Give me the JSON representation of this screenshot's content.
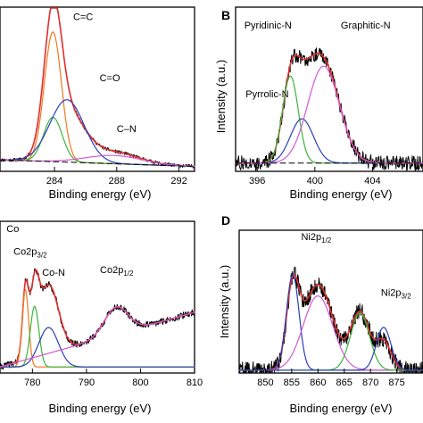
{
  "chart_data": [
    {
      "id": "A",
      "type": "line",
      "panel_label": "",
      "title": "",
      "xlabel": "Binding energy (eV)",
      "ylabel": "",
      "xlim": [
        280.5,
        293
      ],
      "ylim": [
        0,
        1
      ],
      "xticks": [
        284,
        288,
        292
      ],
      "xtick_labels": [
        "284",
        "288",
        "292"
      ],
      "annotations": [
        {
          "text": "C=C",
          "sub": "",
          "x": 285.2,
          "y": 0.92
        },
        {
          "text": "C=O",
          "sub": "",
          "x": 286.9,
          "y": 0.55
        },
        {
          "text": "C–N",
          "sub": "",
          "x": 288.0,
          "y": 0.24
        }
      ],
      "series": [
        {
          "color": "#000000",
          "role": "data",
          "width": 1.0,
          "peaks": [
            {
              "c": 283.9,
              "a": 0.77,
              "w": 0.55
            },
            {
              "c": 284.8,
              "a": 0.3,
              "w": 1.1
            },
            {
              "c": 287.8,
              "a": 0.07,
              "w": 1.6
            }
          ],
          "baseline": [
            0.07,
            0.03
          ],
          "noise": 0.01,
          "seed": 11,
          "step": 0.03
        },
        {
          "color": "#e03030",
          "role": "fit",
          "width": 1.6,
          "peaks": [
            {
              "c": 283.9,
              "a": 0.77,
              "w": 0.55
            },
            {
              "c": 284.8,
              "a": 0.3,
              "w": 1.1
            },
            {
              "c": 287.8,
              "a": 0.07,
              "w": 1.6
            }
          ],
          "baseline": [
            0.07,
            0.03
          ]
        },
        {
          "color": "#f07820",
          "role": "component",
          "width": 1.2,
          "peaks": [
            {
              "c": 283.9,
              "a": 0.79,
              "w": 0.55
            }
          ],
          "baseline": [
            0.07,
            0.03
          ]
        },
        {
          "color": "#3cb43c",
          "role": "component",
          "width": 1.2,
          "peaks": [
            {
              "c": 283.9,
              "a": 0.27,
              "w": 0.6
            }
          ],
          "baseline": [
            0.07,
            0.03
          ]
        },
        {
          "color": "#2b3fb8",
          "role": "component",
          "width": 1.2,
          "peaks": [
            {
              "c": 284.8,
              "a": 0.38,
              "w": 1.1
            }
          ],
          "baseline": [
            0.07,
            0.03
          ]
        },
        {
          "color": "#d05ad0",
          "role": "component",
          "width": 1.2,
          "peaks": [
            {
              "c": 287.8,
              "a": 0.05,
              "w": 1.8
            }
          ],
          "baseline": [
            0.07,
            0.03
          ]
        },
        {
          "color": "#000000",
          "role": "baseline",
          "width": 1.0,
          "dash": "6,4",
          "peaks": [],
          "baseline": [
            0.07,
            0.03
          ]
        }
      ]
    },
    {
      "id": "B",
      "type": "line",
      "panel_label": "B",
      "title": "",
      "xlabel": "Binding energy (eV)",
      "ylabel": "Intensity (a.u.)",
      "xlim": [
        394.5,
        407.5
      ],
      "ylim": [
        0,
        1
      ],
      "xticks": [
        396,
        400,
        404
      ],
      "xtick_labels": [
        "396",
        "400",
        "404"
      ],
      "annotations": [
        {
          "text": "Pyridinic-N",
          "sub": "",
          "x": 395.1,
          "y": 0.87
        },
        {
          "text": "Graphitic-N",
          "sub": "",
          "x": 401.8,
          "y": 0.87
        },
        {
          "text": "Pyrrolic-N",
          "sub": "",
          "x": 395.2,
          "y": 0.45
        }
      ],
      "series": [
        {
          "color": "#000000",
          "role": "data",
          "width": 1.0,
          "peaks": [
            {
              "c": 398.3,
              "a": 0.37,
              "w": 0.55
            },
            {
              "c": 399.1,
              "a": 0.27,
              "w": 0.8
            },
            {
              "c": 400.6,
              "a": 0.6,
              "w": 1.1
            }
          ],
          "baseline": [
            0.05,
            0.05
          ],
          "noise": 0.045,
          "seed": 27,
          "step": 0.035
        },
        {
          "color": "#e03030",
          "role": "fit",
          "width": 1.6,
          "peaks": [
            {
              "c": 398.3,
              "a": 0.37,
              "w": 0.55
            },
            {
              "c": 399.1,
              "a": 0.27,
              "w": 0.8
            },
            {
              "c": 400.6,
              "a": 0.6,
              "w": 1.1
            }
          ],
          "baseline": [
            0.05,
            0.05
          ]
        },
        {
          "color": "#3cb43c",
          "role": "component",
          "width": 1.2,
          "peaks": [
            {
              "c": 398.3,
              "a": 0.53,
              "w": 0.55
            }
          ],
          "baseline": [
            0.05,
            0.05
          ]
        },
        {
          "color": "#2b3fb8",
          "role": "component",
          "width": 1.2,
          "peaks": [
            {
              "c": 399.1,
              "a": 0.27,
              "w": 0.8
            }
          ],
          "baseline": [
            0.05,
            0.05
          ]
        },
        {
          "color": "#d05ad0",
          "role": "component",
          "width": 1.2,
          "peaks": [
            {
              "c": 400.6,
              "a": 0.59,
              "w": 1.1
            }
          ],
          "baseline": [
            0.05,
            0.05
          ]
        },
        {
          "color": "#000000",
          "role": "baseline",
          "width": 1.0,
          "dash": "6,4",
          "peaks": [],
          "baseline": [
            0.05,
            0.05
          ]
        }
      ]
    },
    {
      "id": "C",
      "type": "line",
      "panel_label": "",
      "title": "",
      "xlabel": "Binding energy (eV)",
      "ylabel": "",
      "xlim": [
        774,
        810
      ],
      "ylim": [
        0,
        1
      ],
      "xticks": [
        780,
        790,
        800,
        810
      ],
      "xtick_labels": [
        "780",
        "790",
        "800",
        "810"
      ],
      "annotations": [
        {
          "text": "Co",
          "sub": "",
          "x": 775.2,
          "y": 0.93
        },
        {
          "text": "Co2p",
          "sub": "3/2",
          "x": 776.5,
          "y": 0.78
        },
        {
          "text": "Co-N",
          "sub": "",
          "x": 781.8,
          "y": 0.64
        },
        {
          "text": "Co2p",
          "sub": "1/2",
          "x": 792.5,
          "y": 0.66
        }
      ],
      "series": [
        {
          "color": "#000000",
          "role": "data",
          "width": 1.0,
          "peaks": [
            {
              "c": 778.7,
              "a": 0.45,
              "w": 0.55
            },
            {
              "c": 780.4,
              "a": 0.4,
              "w": 0.8
            },
            {
              "c": 783.0,
              "a": 0.45,
              "w": 1.8
            },
            {
              "c": 795.5,
              "a": 0.18,
              "w": 2.2
            }
          ],
          "baseline": [
            0.04,
            0.4
          ],
          "noise": 0.022,
          "seed": 41,
          "step": 0.09
        },
        {
          "color": "#e03030",
          "role": "fit",
          "width": 1.6,
          "peaks": [
            {
              "c": 778.7,
              "a": 0.45,
              "w": 0.55
            },
            {
              "c": 780.4,
              "a": 0.4,
              "w": 0.8
            },
            {
              "c": 783.0,
              "a": 0.45,
              "w": 1.8
            },
            {
              "c": 795.5,
              "a": 0.18,
              "w": 2.2
            }
          ],
          "baseline": [
            0.04,
            0.4
          ]
        },
        {
          "color": "#f07820",
          "role": "component",
          "width": 1.2,
          "peaks": [
            {
              "c": 778.7,
              "a": 0.51,
              "w": 0.6
            }
          ],
          "baseline": [
            0.04,
            0.04
          ]
        },
        {
          "color": "#3cb43c",
          "role": "component",
          "width": 1.2,
          "peaks": [
            {
              "c": 780.4,
              "a": 0.4,
              "w": 0.8
            }
          ],
          "baseline": [
            0.04,
            0.04
          ]
        },
        {
          "color": "#2b3fb8",
          "role": "component",
          "width": 1.2,
          "peaks": [
            {
              "c": 783.0,
              "a": 0.26,
              "w": 1.8
            }
          ],
          "baseline": [
            0.04,
            0.04
          ]
        },
        {
          "color": "#d05ad0",
          "role": "component",
          "width": 1.2,
          "peaks": [
            {
              "c": 795.5,
              "a": 0.18,
              "w": 2.2
            }
          ],
          "baseline": [
            0.04,
            0.4
          ]
        }
      ]
    },
    {
      "id": "D",
      "type": "line",
      "panel_label": "D",
      "title": "",
      "xlabel": "Binding energy (eV)",
      "ylabel": "Intensity (a.u.)",
      "xlim": [
        845,
        880
      ],
      "ylim": [
        0,
        1
      ],
      "xticks": [
        850,
        855,
        860,
        865,
        870,
        875
      ],
      "xtick_labels": [
        "850",
        "855",
        "860",
        "865",
        "870",
        "875"
      ],
      "annotations": [
        {
          "text": "Ni2p",
          "sub": "1/2",
          "x": 856.8,
          "y": 0.93
        },
        {
          "text": "Ni2p",
          "sub": "3/2",
          "x": 872.0,
          "y": 0.54
        }
      ],
      "series": [
        {
          "color": "#000000",
          "role": "data",
          "width": 1.0,
          "peaks": [
            {
              "c": 855.2,
              "a": 0.52,
              "w": 1.2
            },
            {
              "c": 860.0,
              "a": 0.6,
              "w": 2.8
            },
            {
              "c": 868.0,
              "a": 0.4,
              "w": 1.8
            },
            {
              "c": 872.5,
              "a": 0.2,
              "w": 1.4
            }
          ],
          "baseline": [
            0.02,
            0.02
          ],
          "noise": 0.06,
          "seed": 59,
          "step": 0.07
        },
        {
          "color": "#e03030",
          "role": "fit",
          "width": 1.6,
          "peaks": [
            {
              "c": 855.2,
              "a": 0.52,
              "w": 1.2
            },
            {
              "c": 860.0,
              "a": 0.6,
              "w": 2.8
            },
            {
              "c": 868.0,
              "a": 0.4,
              "w": 1.8
            },
            {
              "c": 872.5,
              "a": 0.2,
              "w": 1.4
            }
          ],
          "baseline": [
            0.02,
            0.02
          ]
        },
        {
          "color": "#2b3fb8",
          "role": "component",
          "width": 1.2,
          "peaks": [
            {
              "c": 855.2,
              "a": 0.67,
              "w": 1.2
            }
          ],
          "baseline": [
            0.02,
            0.02
          ]
        },
        {
          "color": "#d05ad0",
          "role": "component",
          "width": 1.2,
          "peaks": [
            {
              "c": 860.0,
              "a": 0.52,
              "w": 2.8
            }
          ],
          "baseline": [
            0.02,
            0.02
          ]
        },
        {
          "color": "#3cb43c",
          "role": "component",
          "width": 1.2,
          "peaks": [
            {
              "c": 868.0,
              "a": 0.4,
              "w": 1.8
            }
          ],
          "baseline": [
            0.02,
            0.02
          ]
        },
        {
          "color": "#2b3fb8",
          "role": "component",
          "width": 1.2,
          "peaks": [
            {
              "c": 872.5,
              "a": 0.3,
              "w": 1.4
            }
          ],
          "baseline": [
            0.02,
            0.02
          ]
        }
      ]
    }
  ]
}
